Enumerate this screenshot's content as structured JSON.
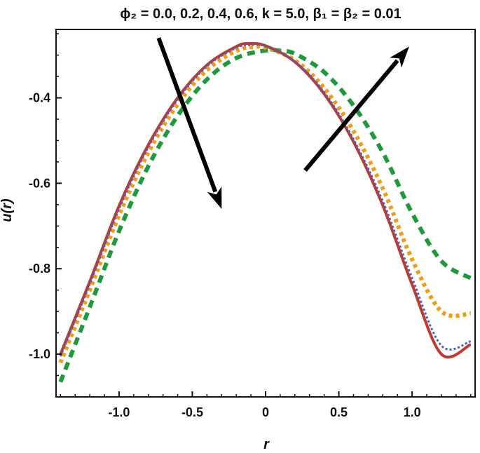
{
  "chart_data": {
    "type": "line",
    "title": "ϕ₂ = 0.0, 0.2, 0.4, 0.6, k = 5.0, β₁ = β₂ = 0.01",
    "xlabel": "r",
    "ylabel": "u(r)",
    "xlim": [
      -1.43,
      1.43
    ],
    "ylim": [
      -1.1,
      -0.24
    ],
    "x_ticks": [
      -1.0,
      -0.5,
      0,
      0.5,
      1.0
    ],
    "x_tick_labels": [
      "-1.0",
      "-0.5",
      "0",
      "0.5",
      "1.0"
    ],
    "y_ticks": [
      -1.0,
      -0.8,
      -0.6,
      -0.4
    ],
    "y_tick_labels": [
      "-1.0",
      "-0.8",
      "-0.6",
      "-0.4"
    ],
    "grid": false,
    "series": [
      {
        "color": "#c0392b",
        "style": "solid",
        "x": [
          -1.4,
          -1.2,
          -1.0,
          -0.8,
          -0.6,
          -0.4,
          -0.2,
          -0.12,
          0.0,
          0.2,
          0.4,
          0.6,
          0.8,
          1.0,
          1.2,
          1.4
        ],
        "y": [
          -1.0,
          -0.83,
          -0.653,
          -0.51,
          -0.4,
          -0.323,
          -0.28,
          -0.273,
          -0.278,
          -0.316,
          -0.391,
          -0.503,
          -0.652,
          -0.837,
          -1.0,
          -0.977
        ]
      },
      {
        "color": "#4a5fc1",
        "style": "dotted",
        "x": [
          -1.4,
          -1.2,
          -1.0,
          -0.8,
          -0.6,
          -0.4,
          -0.2,
          -0.1,
          0.0,
          0.2,
          0.4,
          0.6,
          0.8,
          1.0,
          1.2,
          1.4
        ],
        "y": [
          -1.005,
          -0.836,
          -0.66,
          -0.515,
          -0.404,
          -0.326,
          -0.283,
          -0.276,
          -0.28,
          -0.315,
          -0.387,
          -0.497,
          -0.642,
          -0.822,
          -0.98,
          -0.97
        ]
      },
      {
        "color": "#f39c12",
        "style": "dotted",
        "x": [
          -1.4,
          -1.2,
          -1.0,
          -0.8,
          -0.6,
          -0.4,
          -0.2,
          -0.08,
          0.0,
          0.2,
          0.4,
          0.6,
          0.8,
          1.0,
          1.2,
          1.4
        ],
        "y": [
          -1.02,
          -0.85,
          -0.675,
          -0.528,
          -0.415,
          -0.335,
          -0.29,
          -0.281,
          -0.283,
          -0.312,
          -0.377,
          -0.478,
          -0.612,
          -0.778,
          -0.9,
          -0.905
        ]
      },
      {
        "color": "#1e9a3c",
        "style": "dashed",
        "x": [
          -1.4,
          -1.2,
          -1.0,
          -0.8,
          -0.6,
          -0.4,
          -0.2,
          0.0,
          0.1,
          0.2,
          0.4,
          0.6,
          0.8,
          1.0,
          1.2,
          1.4
        ],
        "y": [
          -1.065,
          -0.89,
          -0.712,
          -0.56,
          -0.442,
          -0.357,
          -0.307,
          -0.289,
          -0.29,
          -0.297,
          -0.34,
          -0.418,
          -0.528,
          -0.67,
          -0.782,
          -0.822
        ]
      }
    ],
    "annotations": [
      {
        "type": "arrow",
        "from": [
          -0.73,
          -0.26
        ],
        "to": [
          -0.3,
          -0.66
        ]
      },
      {
        "type": "arrow",
        "from": [
          0.27,
          -0.57
        ],
        "to": [
          0.98,
          -0.28
        ]
      }
    ]
  }
}
